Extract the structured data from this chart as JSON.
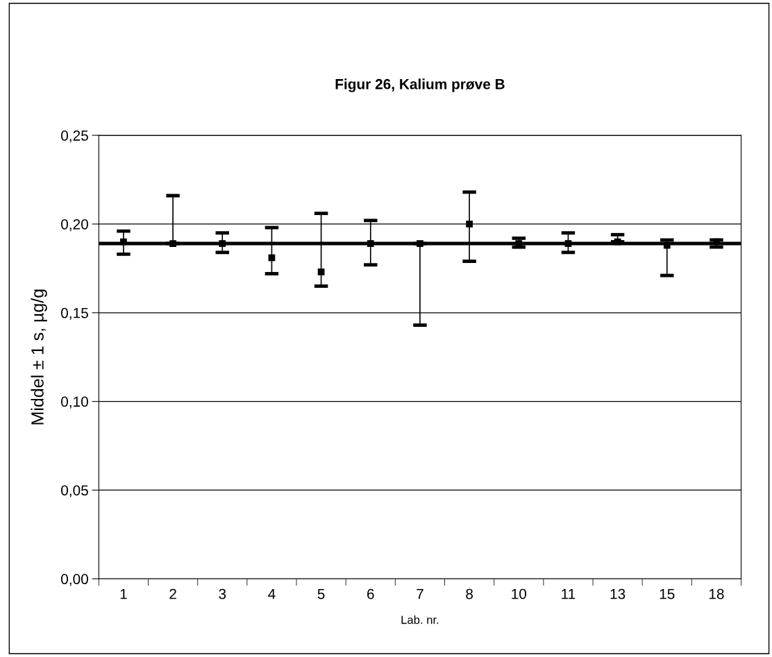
{
  "chart_data": {
    "type": "scatter",
    "title": "Figur 26, Kalium prøve B",
    "xlabel": "Lab. nr.",
    "ylabel": "Middel ± 1 s, µg/g",
    "categories": [
      "1",
      "2",
      "3",
      "4",
      "5",
      "6",
      "7",
      "8",
      "10",
      "11",
      "13",
      "15",
      "18"
    ],
    "series": [
      {
        "color": "#000000",
        "values": [
          0.19,
          0.189,
          0.189,
          0.181,
          0.173,
          0.189,
          0.189,
          0.2,
          0.189,
          0.189,
          0.19,
          0.188,
          0.19
        ],
        "errors": [
          [
            0.183,
            0.196
          ],
          [
            0.189,
            0.216
          ],
          [
            0.184,
            0.195
          ],
          [
            0.172,
            0.198
          ],
          [
            0.165,
            0.206
          ],
          [
            0.177,
            0.202
          ],
          [
            0.143,
            0.189
          ],
          [
            0.179,
            0.218
          ],
          [
            0.187,
            0.192
          ],
          [
            0.184,
            0.195
          ],
          [
            0.19,
            0.194
          ],
          [
            0.171,
            0.191
          ],
          [
            0.187,
            0.191
          ]
        ]
      }
    ],
    "ref_lines": [
      {
        "axis": "y",
        "value": 0.189,
        "color": "#000000"
      }
    ],
    "ylim": [
      0,
      0.25
    ],
    "yticks": [
      {
        "value": 0,
        "label": "0,00"
      },
      {
        "value": 0.05,
        "label": "0,05"
      },
      {
        "value": 0.1,
        "label": "0,10"
      },
      {
        "value": 0.15,
        "label": "0,15"
      },
      {
        "value": 0.2,
        "label": "0,20"
      },
      {
        "value": 0.25,
        "label": "0,25"
      }
    ],
    "grid": "y",
    "marker": "square",
    "legend": false
  }
}
